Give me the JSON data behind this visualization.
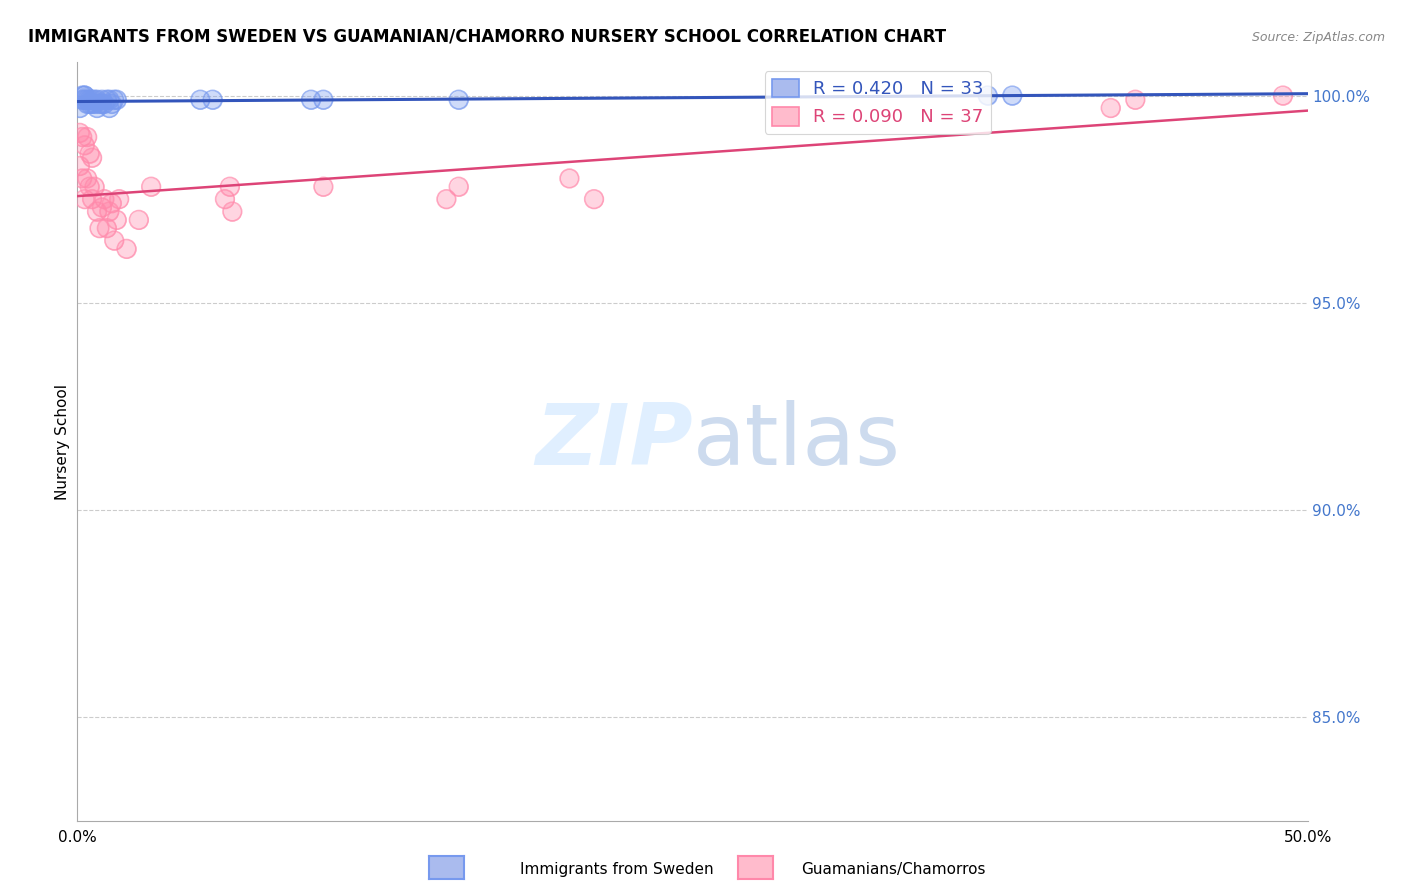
{
  "title": "IMMIGRANTS FROM SWEDEN VS GUAMANIAN/CHAMORRO NURSERY SCHOOL CORRELATION CHART",
  "source": "Source: ZipAtlas.com",
  "ylabel": "Nursery School",
  "xlabel": "",
  "xlim": [
    0.0,
    0.5
  ],
  "ylim": [
    0.825,
    1.008
  ],
  "xticks": [
    0.0,
    0.1,
    0.2,
    0.3,
    0.4,
    0.5
  ],
  "xticklabels": [
    "0.0%",
    "",
    "",
    "",
    "",
    "50.0%"
  ],
  "yticks": [
    0.85,
    0.9,
    0.95,
    1.0
  ],
  "yticklabels": [
    "85.0%",
    "90.0%",
    "95.0%",
    "100.0%"
  ],
  "grid_color": "#cccccc",
  "background_color": "#ffffff",
  "legend_R_blue": "R = 0.420",
  "legend_N_blue": "N = 33",
  "legend_R_pink": "R = 0.090",
  "legend_N_pink": "N = 37",
  "blue_color": "#7799ee",
  "pink_color": "#ff88aa",
  "blue_line_color": "#3355bb",
  "pink_line_color": "#dd4477",
  "watermark_color": "#ddeeff",
  "sweden_x": [
    0.001,
    0.002,
    0.002,
    0.003,
    0.003,
    0.003,
    0.004,
    0.004,
    0.005,
    0.005,
    0.006,
    0.006,
    0.007,
    0.007,
    0.008,
    0.008,
    0.009,
    0.01,
    0.01,
    0.011,
    0.012,
    0.013,
    0.013,
    0.014,
    0.015,
    0.016,
    0.05,
    0.055,
    0.095,
    0.1,
    0.155,
    0.37,
    0.38
  ],
  "sweden_y": [
    0.997,
    0.999,
    1.0,
    0.999,
    1.0,
    1.0,
    0.998,
    0.999,
    0.998,
    0.999,
    0.998,
    0.999,
    0.998,
    0.999,
    0.997,
    0.999,
    0.998,
    0.998,
    0.999,
    0.998,
    0.999,
    0.997,
    0.999,
    0.998,
    0.999,
    0.999,
    0.999,
    0.999,
    0.999,
    0.999,
    0.999,
    1.0,
    1.0
  ],
  "guam_x": [
    0.001,
    0.001,
    0.002,
    0.002,
    0.003,
    0.003,
    0.004,
    0.004,
    0.005,
    0.005,
    0.006,
    0.006,
    0.007,
    0.008,
    0.009,
    0.01,
    0.011,
    0.012,
    0.013,
    0.014,
    0.015,
    0.016,
    0.017,
    0.02,
    0.025,
    0.03,
    0.06,
    0.062,
    0.063,
    0.1,
    0.15,
    0.155,
    0.2,
    0.21,
    0.42,
    0.43,
    0.49
  ],
  "guam_y": [
    0.983,
    0.991,
    0.98,
    0.99,
    0.975,
    0.988,
    0.98,
    0.99,
    0.978,
    0.986,
    0.975,
    0.985,
    0.978,
    0.972,
    0.968,
    0.973,
    0.975,
    0.968,
    0.972,
    0.974,
    0.965,
    0.97,
    0.975,
    0.963,
    0.97,
    0.978,
    0.975,
    0.978,
    0.972,
    0.978,
    0.975,
    0.978,
    0.98,
    0.975,
    0.997,
    0.999,
    1.0
  ]
}
